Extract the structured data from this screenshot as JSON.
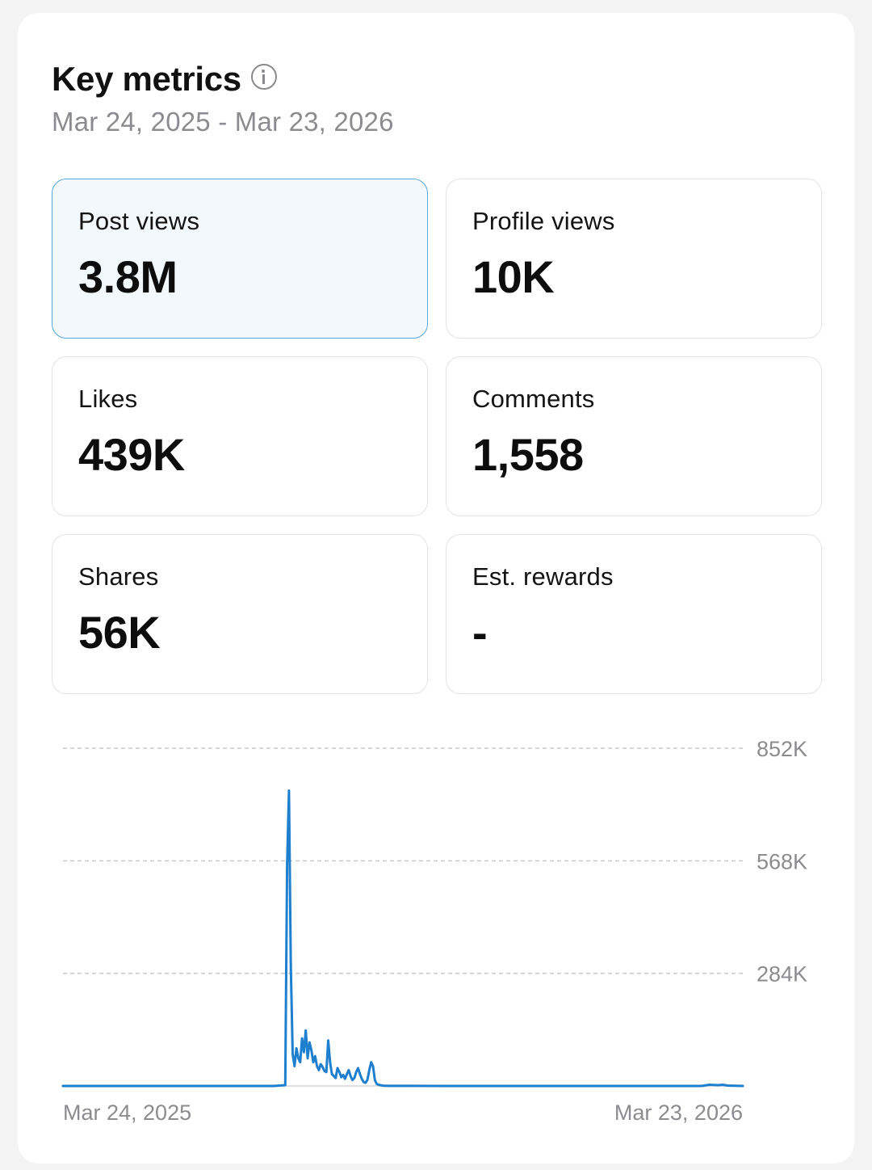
{
  "header": {
    "title": "Key metrics",
    "info_icon": "info-icon",
    "date_range": "Mar 24, 2025 - Mar 23, 2026"
  },
  "metrics": [
    {
      "label": "Post views",
      "value": "3.8M",
      "selected": true
    },
    {
      "label": "Profile views",
      "value": "10K",
      "selected": false
    },
    {
      "label": "Likes",
      "value": "439K",
      "selected": false
    },
    {
      "label": "Comments",
      "value": "1,558",
      "selected": false
    },
    {
      "label": "Shares",
      "value": "56K",
      "selected": false
    },
    {
      "label": "Est. rewards",
      "value": "-",
      "selected": false
    }
  ],
  "colors": {
    "line": "#1f7fcf",
    "selected_bg": "#f3f8fc",
    "selected_border": "#5aa6d8",
    "muted_text": "#8c8c90"
  },
  "chart_data": {
    "type": "line",
    "x_start_label": "Mar 24, 2025",
    "x_end_label": "Mar 23, 2026",
    "y_ticks": [
      "852K",
      "568K",
      "284K"
    ],
    "y_tick_values": [
      852000,
      568000,
      284000
    ],
    "ylim": [
      0,
      852000
    ],
    "grid": true,
    "series": [
      {
        "x": [
          "2025-03-24",
          "2025-06-01",
          "2025-07-01",
          "2025-07-15",
          "2025-07-21",
          "2025-07-22",
          "2025-07-23",
          "2025-07-24",
          "2025-07-25",
          "2025-07-26",
          "2025-07-27",
          "2025-07-28",
          "2025-07-29",
          "2025-07-30",
          "2025-07-31",
          "2025-08-01",
          "2025-08-02",
          "2025-08-03",
          "2025-08-04",
          "2025-08-05",
          "2025-08-06",
          "2025-08-07",
          "2025-08-08",
          "2025-08-09",
          "2025-08-10",
          "2025-08-11",
          "2025-08-12",
          "2025-08-13",
          "2025-08-14",
          "2025-08-15",
          "2025-08-16",
          "2025-08-17",
          "2025-08-18",
          "2025-08-19",
          "2025-08-20",
          "2025-08-21",
          "2025-08-22",
          "2025-08-23",
          "2025-08-24",
          "2025-08-25",
          "2025-08-26",
          "2025-08-27",
          "2025-08-28",
          "2025-08-29",
          "2025-08-30",
          "2025-08-31",
          "2025-09-01",
          "2025-09-02",
          "2025-09-03",
          "2025-09-04",
          "2025-09-05",
          "2025-09-06",
          "2025-09-07",
          "2025-09-08",
          "2025-09-09",
          "2025-09-10",
          "2025-09-11",
          "2025-09-12",
          "2025-09-14",
          "2025-09-20",
          "2025-10-15",
          "2025-12-01",
          "2026-02-01",
          "2026-03-01",
          "2026-03-05",
          "2026-03-10",
          "2026-03-12",
          "2026-03-15",
          "2026-03-23"
        ],
        "y": [
          0,
          0,
          0,
          0,
          2000,
          560000,
          745000,
          300000,
          80000,
          50000,
          95000,
          70000,
          60000,
          120000,
          85000,
          140000,
          70000,
          110000,
          90000,
          60000,
          75000,
          50000,
          40000,
          55000,
          48000,
          38000,
          35000,
          115000,
          60000,
          30000,
          25000,
          20000,
          45000,
          35000,
          22000,
          28000,
          18000,
          30000,
          40000,
          25000,
          15000,
          20000,
          35000,
          45000,
          30000,
          18000,
          10000,
          8000,
          15000,
          40000,
          60000,
          50000,
          15000,
          5000,
          3000,
          2000,
          1000,
          500,
          300,
          200,
          100,
          100,
          100,
          100,
          3000,
          2000,
          3000,
          1000,
          0
        ]
      }
    ]
  }
}
